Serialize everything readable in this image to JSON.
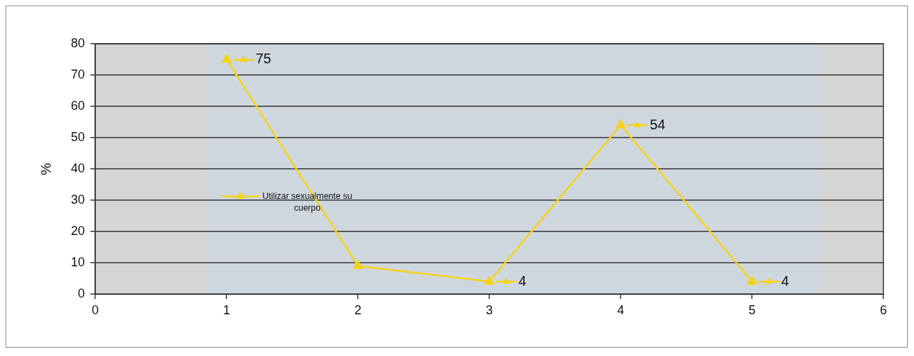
{
  "chart_data": {
    "type": "line",
    "ylabel": "%",
    "x": [
      1,
      2,
      3,
      4,
      5
    ],
    "series": [
      {
        "name": "Utilizar sexualmente su cuerpo",
        "color": "#f5d316",
        "values": [
          75,
          9,
          4,
          54,
          4
        ],
        "value_labels": [
          "75",
          null,
          "4",
          "54",
          "4"
        ]
      }
    ],
    "xlim": [
      0,
      6
    ],
    "xticks": [
      0,
      1,
      2,
      3,
      4,
      5,
      6
    ],
    "ylim": [
      0,
      80
    ],
    "yticks": [
      0,
      10,
      20,
      30,
      40,
      50,
      60,
      70,
      80
    ],
    "grid": "y",
    "legend": "left",
    "marker": "triangle",
    "line_style": "solid",
    "bands": [
      {
        "axis": "x",
        "from": 0.85,
        "to": 5.5,
        "color": "#cfd7de"
      }
    ]
  }
}
